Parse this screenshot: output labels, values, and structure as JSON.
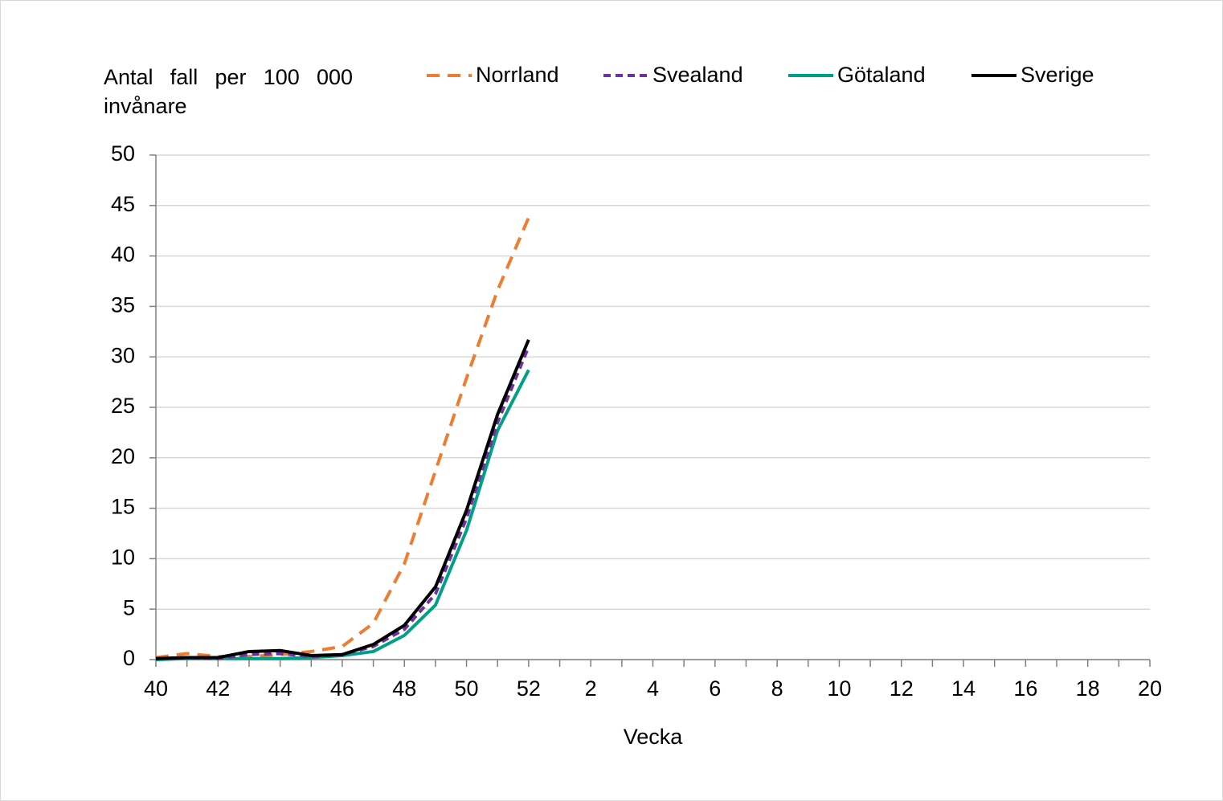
{
  "chart_data": {
    "type": "line",
    "y_label": "Antal fall per 100 000 invånare",
    "x_label": "Vecka",
    "categories": [
      "40",
      null,
      "42",
      null,
      "44",
      null,
      "46",
      null,
      "48",
      null,
      "50",
      null,
      "52",
      null,
      "2",
      null,
      "4",
      null,
      "6",
      null,
      "8",
      null,
      "10",
      null,
      "12",
      null,
      "14",
      null,
      "16",
      null,
      "18",
      null,
      "20"
    ],
    "series": [
      {
        "name": "Norrland",
        "color": "#ED7D31",
        "dash": "16 10",
        "values": [
          0.2,
          0.6,
          0.3,
          0.3,
          0.5,
          0.8,
          1.3,
          3.6,
          9.5,
          18.7,
          27.9,
          36.6,
          43.8,
          null,
          null,
          null,
          null,
          null,
          null,
          null,
          null,
          null,
          null,
          null,
          null,
          null,
          null,
          null,
          null,
          null,
          null,
          null,
          null
        ]
      },
      {
        "name": "Svealand",
        "color": "#7030A0",
        "dash": "9 6",
        "values": [
          0.1,
          0.2,
          0.1,
          0.5,
          0.6,
          0.3,
          0.5,
          1.3,
          3.0,
          6.5,
          14.0,
          23.5,
          31.0,
          null,
          null,
          null,
          null,
          null,
          null,
          null,
          null,
          null,
          null,
          null,
          null,
          null,
          null,
          null,
          null,
          null,
          null,
          null,
          null
        ]
      },
      {
        "name": "Götaland",
        "color": "#00A087",
        "dash": "none",
        "values": [
          0.0,
          0.1,
          0.1,
          0.1,
          0.1,
          0.2,
          0.4,
          0.8,
          2.4,
          5.4,
          12.8,
          22.7,
          28.7,
          null,
          null,
          null,
          null,
          null,
          null,
          null,
          null,
          null,
          null,
          null,
          null,
          null,
          null,
          null,
          null,
          null,
          null,
          null,
          null
        ]
      },
      {
        "name": "Sverige",
        "color": "#000000",
        "dash": "none",
        "values": [
          0.1,
          0.2,
          0.2,
          0.8,
          0.9,
          0.4,
          0.5,
          1.5,
          3.4,
          7.2,
          14.8,
          24.3,
          31.7,
          null,
          null,
          null,
          null,
          null,
          null,
          null,
          null,
          null,
          null,
          null,
          null,
          null,
          null,
          null,
          null,
          null,
          null,
          null,
          null
        ]
      }
    ],
    "ylim": [
      0,
      50
    ],
    "yticks": [
      0,
      5,
      10,
      15,
      20,
      25,
      30,
      35,
      40,
      45,
      50
    ],
    "grid": true,
    "legend": "top"
  }
}
